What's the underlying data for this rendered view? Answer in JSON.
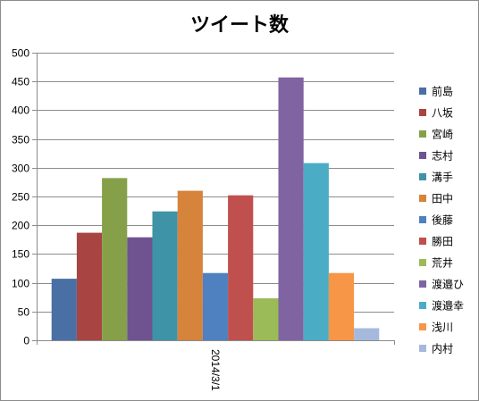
{
  "chart_data": {
    "type": "bar",
    "title": "ツイート数",
    "categories": [
      "2014/3/1"
    ],
    "ylim": [
      0,
      500
    ],
    "ytick_step": 50,
    "grid": true,
    "legend_position": "right",
    "series": [
      {
        "name": "前島",
        "values": [
          107
        ],
        "color": "#4a6fa5"
      },
      {
        "name": "八坂",
        "values": [
          187
        ],
        "color": "#a84542"
      },
      {
        "name": "宮崎",
        "values": [
          282
        ],
        "color": "#86a04a"
      },
      {
        "name": "志村",
        "values": [
          179
        ],
        "color": "#6e5390"
      },
      {
        "name": "溝手",
        "values": [
          224
        ],
        "color": "#3e93a7"
      },
      {
        "name": "田中",
        "values": [
          260
        ],
        "color": "#d6833c"
      },
      {
        "name": "後藤",
        "values": [
          117
        ],
        "color": "#4f81c0"
      },
      {
        "name": "勝田",
        "values": [
          252
        ],
        "color": "#c0504d"
      },
      {
        "name": "荒井",
        "values": [
          73
        ],
        "color": "#9bbb59"
      },
      {
        "name": "渡邉ひ",
        "values": [
          457
        ],
        "color": "#8064a2"
      },
      {
        "name": "渡邉幸",
        "values": [
          308
        ],
        "color": "#4bacc6"
      },
      {
        "name": "浅川",
        "values": [
          117
        ],
        "color": "#f79646"
      },
      {
        "name": "内村",
        "values": [
          21
        ],
        "color": "#a6b9dc"
      }
    ]
  }
}
